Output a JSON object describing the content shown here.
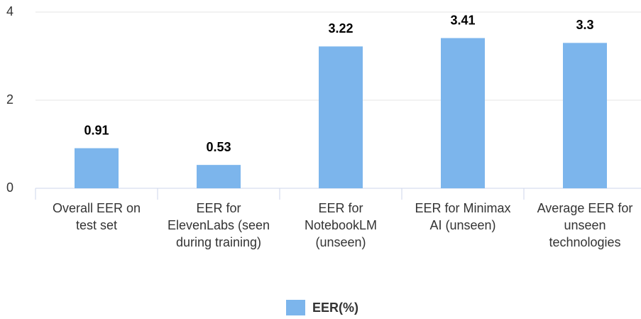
{
  "chart_data": {
    "type": "bar",
    "categories": [
      "Overall EER on test set",
      "EER for ElevenLabs (seen during training)",
      "EER for NotebookLM (unseen)",
      "EER for Minimax AI (unseen)",
      "Average EER for unseen technologies"
    ],
    "series": [
      {
        "name": "EER(%)",
        "color": "#7cb5ec",
        "values": [
          0.91,
          0.53,
          3.22,
          3.41,
          3.3
        ]
      }
    ],
    "ylim": [
      0,
      4
    ],
    "yticks": [
      0,
      2,
      4
    ],
    "grid": true,
    "legend": "bottom"
  }
}
